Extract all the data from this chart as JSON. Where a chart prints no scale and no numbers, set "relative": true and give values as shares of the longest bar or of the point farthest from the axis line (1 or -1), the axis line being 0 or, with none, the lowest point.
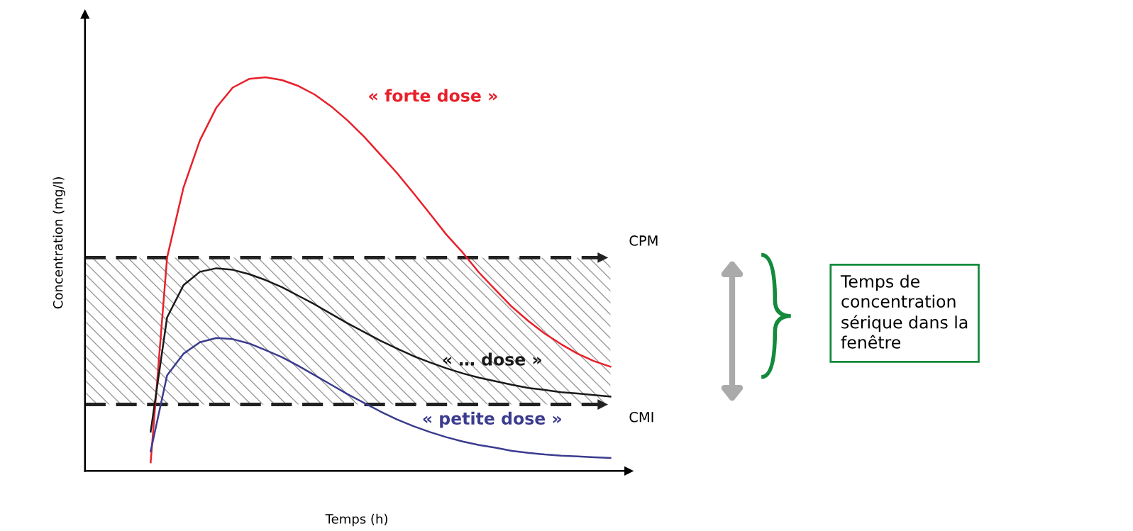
{
  "chart_data": {
    "type": "line",
    "relative": true,
    "xlabel": "Temps (h)",
    "ylabel": "Concentration (mg/l)",
    "categories": [
      null,
      null,
      null,
      null,
      null,
      null,
      null,
      null,
      null,
      null,
      null,
      null,
      null,
      null,
      null,
      null,
      null,
      null,
      null,
      null,
      null,
      null,
      null,
      null,
      null,
      null,
      null,
      null,
      null,
      null,
      null,
      null,
      null
    ],
    "series": [
      {
        "name": "« forte dose »",
        "color": "#e8202a",
        "values": [
          null,
          null,
          null,
          null,
          0.022,
          0.542,
          0.72,
          0.84,
          0.923,
          0.974,
          0.996,
          1.0,
          0.993,
          0.978,
          0.956,
          0.926,
          0.89,
          0.849,
          0.803,
          0.757,
          0.706,
          0.654,
          0.601,
          0.555,
          0.504,
          0.46,
          0.417,
          0.381,
          0.349,
          0.322,
          0.298,
          0.279,
          0.265
        ]
      },
      {
        "name": "« … dose »",
        "color": "#1a1a1a",
        "values": [
          null,
          null,
          null,
          null,
          0.1,
          0.39,
          0.472,
          0.506,
          0.515,
          0.511,
          0.5,
          0.485,
          0.467,
          0.445,
          0.423,
          0.399,
          0.375,
          0.353,
          0.331,
          0.311,
          0.292,
          0.276,
          0.261,
          0.248,
          0.237,
          0.228,
          0.219,
          0.211,
          0.206,
          0.2,
          0.197,
          0.193,
          0.189
        ]
      },
      {
        "name": "« petite dose »",
        "color": "#3b3b8f",
        "values": [
          null,
          null,
          null,
          null,
          0.05,
          0.243,
          0.298,
          0.327,
          0.338,
          0.335,
          0.324,
          0.307,
          0.289,
          0.267,
          0.243,
          0.219,
          0.195,
          0.173,
          0.151,
          0.131,
          0.114,
          0.099,
          0.086,
          0.075,
          0.066,
          0.059,
          0.051,
          0.046,
          0.042,
          0.039,
          0.037,
          0.035,
          0.033
        ]
      }
    ],
    "ref_lines": [
      {
        "axis": "y",
        "value": 0.542,
        "label": "CPM",
        "color": "#222222",
        "line_style": "dashed"
      },
      {
        "axis": "y",
        "value": 0.169,
        "label": "CMI",
        "color": "#222222",
        "line_style": "dashed"
      }
    ],
    "bands": [
      {
        "axis": "y",
        "from": 0.169,
        "to": 0.542,
        "color": "#9a9a9a"
      }
    ],
    "annotations": [
      "Temps de\nconcentration\nsérique dans la\nfenêtre"
    ]
  }
}
